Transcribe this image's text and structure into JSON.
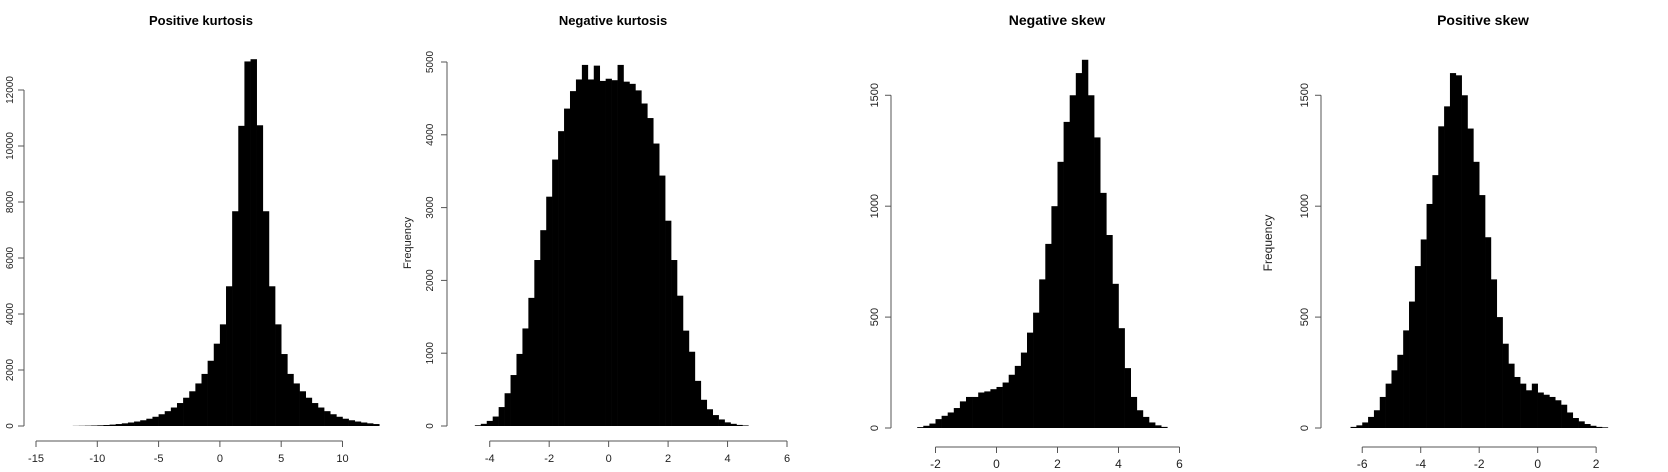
{
  "chart_data": [
    {
      "type": "bar",
      "title": "Positive kurtosis",
      "ylabel": "",
      "xlim": [
        -15,
        12
      ],
      "ylim": [
        0,
        13000
      ],
      "x_ticks": [
        "-15",
        "-10",
        "-5",
        "0",
        "5",
        "10"
      ],
      "y_ticks": [
        "0",
        "2000",
        "4000",
        "6000",
        "8000",
        "10000",
        "12000"
      ],
      "bin_start": -12,
      "bin_width": 0.5,
      "values": [
        5,
        8,
        12,
        18,
        25,
        35,
        50,
        70,
        95,
        125,
        160,
        205,
        260,
        330,
        420,
        530,
        660,
        820,
        1010,
        1240,
        1520,
        1860,
        2330,
        2940,
        3630,
        4990,
        7670,
        10720,
        13020,
        13100,
        10740,
        7670,
        4990,
        3630,
        2570,
        1860,
        1520,
        1240,
        1010,
        820,
        660,
        530,
        420,
        330,
        260,
        205,
        160,
        125,
        95,
        70
      ]
    },
    {
      "type": "bar",
      "title": "Negative kurtosis",
      "ylabel": "Frequency",
      "xlim": [
        -5,
        6
      ],
      "ylim": [
        0,
        5000
      ],
      "x_ticks": [
        "-4",
        "-2",
        "0",
        "2",
        "4",
        "6"
      ],
      "y_ticks": [
        "0",
        "1000",
        "2000",
        "3000",
        "4000",
        "5000"
      ],
      "bin_start": -4.5,
      "bin_width": 0.2,
      "values": [
        10,
        30,
        70,
        130,
        260,
        450,
        700,
        990,
        1340,
        1760,
        2280,
        2690,
        3150,
        3660,
        4050,
        4360,
        4600,
        4760,
        4960,
        4760,
        4950,
        4740,
        4770,
        4750,
        4960,
        4730,
        4700,
        4610,
        4430,
        4230,
        3880,
        3440,
        2820,
        2280,
        1790,
        1310,
        1020,
        620,
        360,
        230,
        150,
        90,
        50,
        30,
        15,
        8
      ]
    },
    {
      "type": "bar",
      "title": "Negative skew",
      "ylabel": "",
      "xlim": [
        -3,
        7
      ],
      "ylim": [
        0,
        1650
      ],
      "x_ticks": [
        "-2",
        "0",
        "2",
        "4",
        "6"
      ],
      "y_ticks": [
        "0",
        "500",
        "1000",
        "1500"
      ],
      "bin_start": -2.6,
      "bin_width": 0.2,
      "values": [
        4,
        10,
        20,
        40,
        55,
        70,
        90,
        120,
        140,
        140,
        160,
        165,
        175,
        185,
        205,
        240,
        280,
        340,
        430,
        520,
        670,
        830,
        1000,
        1200,
        1380,
        1500,
        1600,
        1660,
        1500,
        1310,
        1060,
        870,
        650,
        450,
        270,
        140,
        80,
        50,
        25,
        12,
        5
      ]
    },
    {
      "type": "bar",
      "title": "Positive skew",
      "ylabel": "Frequency",
      "xlim": [
        -7,
        3.5
      ],
      "ylim": [
        0,
        1650
      ],
      "x_ticks": [
        "-6",
        "-4",
        "-2",
        "0",
        "2"
      ],
      "y_ticks": [
        "0",
        "500",
        "1000",
        "1500"
      ],
      "bin_start": -6.4,
      "bin_width": 0.2,
      "values": [
        5,
        12,
        25,
        50,
        80,
        140,
        200,
        260,
        330,
        440,
        570,
        730,
        850,
        1010,
        1140,
        1360,
        1450,
        1600,
        1590,
        1500,
        1350,
        1200,
        1050,
        860,
        670,
        500,
        380,
        290,
        230,
        200,
        170,
        200,
        160,
        150,
        140,
        125,
        105,
        70,
        45,
        30,
        18,
        10,
        5,
        3
      ]
    }
  ]
}
